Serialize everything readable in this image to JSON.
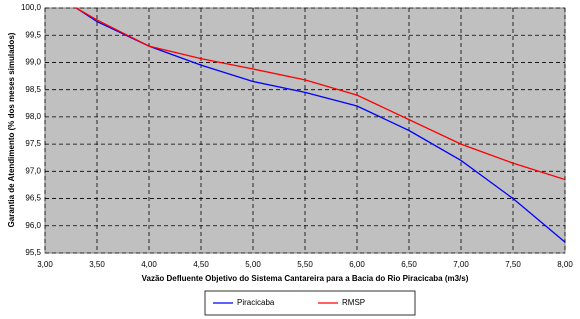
{
  "chart_data": {
    "type": "line",
    "xlabel": "Vazão Defluente Objetivo do Sistema Cantareira para a Bacia do Rio Piracicaba (m3/s)",
    "ylabel": "Garantia de Atendimento (% dos meses simulados)",
    "x": [
      3.3,
      3.5,
      4.0,
      4.5,
      5.0,
      5.5,
      6.0,
      6.5,
      7.0,
      7.5,
      8.0
    ],
    "series": [
      {
        "name": "Piracicaba",
        "color": "#0000ff",
        "values": [
          100.0,
          99.75,
          99.3,
          98.95,
          98.65,
          98.45,
          98.2,
          97.75,
          97.2,
          96.5,
          95.7
        ]
      },
      {
        "name": "RMSP",
        "color": "#ff0000",
        "values": [
          100.0,
          99.78,
          99.3,
          99.07,
          98.88,
          98.68,
          98.4,
          97.95,
          97.5,
          97.15,
          96.85
        ]
      }
    ],
    "xlim": [
      3,
      8
    ],
    "xticks": [
      {
        "value": 3,
        "label": "3,00"
      },
      {
        "value": 3.5,
        "label": "3,50"
      },
      {
        "value": 4,
        "label": "4,00"
      },
      {
        "value": 4.5,
        "label": "4,50"
      },
      {
        "value": 5,
        "label": "5,00"
      },
      {
        "value": 5.5,
        "label": "5,50"
      },
      {
        "value": 6,
        "label": "6,00"
      },
      {
        "value": 6.5,
        "label": "6,50"
      },
      {
        "value": 7,
        "label": "7,00"
      },
      {
        "value": 7.5,
        "label": "7,50"
      },
      {
        "value": 8,
        "label": "8,00"
      }
    ],
    "ylim": [
      95.5,
      100
    ],
    "yticks": [
      {
        "value": 95.5,
        "label": "95,5"
      },
      {
        "value": 96,
        "label": "96,0"
      },
      {
        "value": 96.5,
        "label": "96,5"
      },
      {
        "value": 97,
        "label": "97,0"
      },
      {
        "value": 97.5,
        "label": "97,5"
      },
      {
        "value": 98,
        "label": "98,0"
      },
      {
        "value": 98.5,
        "label": "98,5"
      },
      {
        "value": 99,
        "label": "99,0"
      },
      {
        "value": 99.5,
        "label": "99,5"
      },
      {
        "value": 100,
        "label": "100,0"
      }
    ],
    "grid": true,
    "background": "#c0c0c0"
  }
}
